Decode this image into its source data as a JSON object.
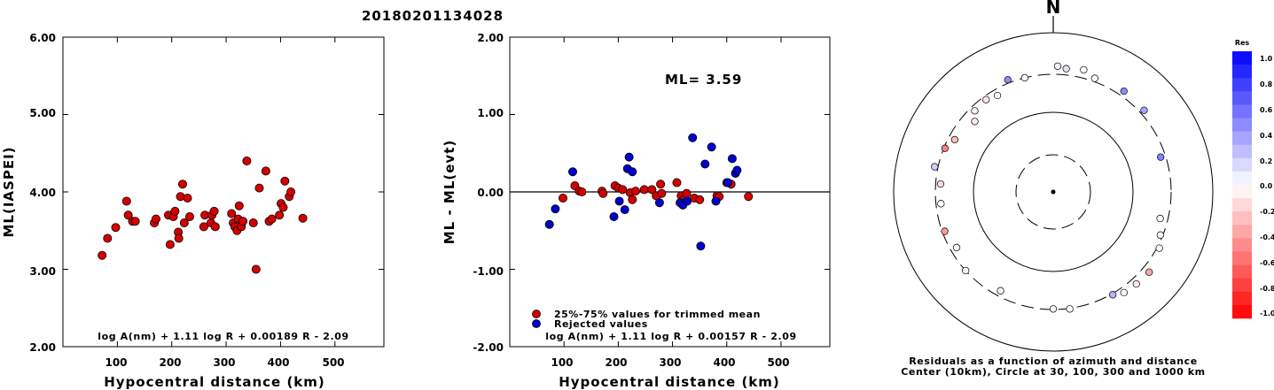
{
  "title": "20180201134028",
  "panel1": {
    "ylabel": "ML(IASPEI)",
    "xlabel": "Hypocentral distance (km)",
    "yticks": [
      "6.00",
      "5.00",
      "4.00",
      "3.00",
      "2.00"
    ],
    "xticks": [
      "100",
      "200",
      "300",
      "400",
      "500"
    ],
    "formula": "log A(nm) + 1.11 log R + 0.00189 R - 2.09"
  },
  "panel2": {
    "ylabel": "ML - ML(evt)",
    "xlabel": "Hypocentral distance (km)",
    "yticks": [
      "2.00",
      "1.00",
      "0.00",
      "-1.00",
      "-2.00"
    ],
    "xticks": [
      "100",
      "200",
      "300",
      "400",
      "500"
    ],
    "ml_text": "ML= 3.59",
    "legend_used": "25%-75% values for trimmed mean",
    "legend_rejected": "Rejected values",
    "formula": "log A(nm) + 1.11 log R + 0.00157 R - 2.09"
  },
  "panel3": {
    "north": "N",
    "caption1": "Residuals as a function of azimuth and distance",
    "caption2": "Center (10km), Circle at 30, 100, 300 and 1000 km",
    "colorbar_title": "Res",
    "colorbar_labels": [
      "1.0",
      "0.8",
      "0.6",
      "0.4",
      "0.2",
      "0.0",
      "-0.2",
      "-0.4",
      "-0.6",
      "-0.8",
      "-1.0"
    ]
  },
  "colors": {
    "used": "#d40000",
    "rejected": "#0000cc",
    "positive_max": "#0000ff",
    "negative_max": "#ff0000"
  },
  "chart_data": [
    {
      "type": "scatter",
      "title": "20180201134028",
      "xlabel": "Hypocentral distance (km)",
      "ylabel": "ML(IASPEI)",
      "xlim": [
        0,
        590
      ],
      "ylim": [
        2.0,
        6.0
      ],
      "grid": false,
      "series": [
        {
          "points": [
            [
              72,
              3.18
            ],
            [
              82,
              3.4
            ],
            [
              97,
              3.54
            ],
            [
              117,
              3.88
            ],
            [
              120,
              3.7
            ],
            [
              128,
              3.62
            ],
            [
              133,
              3.62
            ],
            [
              168,
              3.6
            ],
            [
              171,
              3.65
            ],
            [
              194,
              3.7
            ],
            [
              197,
              3.32
            ],
            [
              203,
              3.68
            ],
            [
              206,
              3.75
            ],
            [
              212,
              3.48
            ],
            [
              213,
              3.4
            ],
            [
              216,
              3.94
            ],
            [
              220,
              4.1
            ],
            [
              223,
              3.6
            ],
            [
              229,
              3.92
            ],
            [
              233,
              3.68
            ],
            [
              259,
              3.55
            ],
            [
              261,
              3.7
            ],
            [
              272,
              3.6
            ],
            [
              274,
              3.7
            ],
            [
              278,
              3.75
            ],
            [
              280,
              3.55
            ],
            [
              310,
              3.72
            ],
            [
              313,
              3.6
            ],
            [
              316,
              3.55
            ],
            [
              320,
              3.5
            ],
            [
              322,
              3.65
            ],
            [
              324,
              3.82
            ],
            [
              328,
              3.55
            ],
            [
              331,
              3.62
            ],
            [
              338,
              4.4
            ],
            [
              350,
              3.6
            ],
            [
              355,
              3.0
            ],
            [
              361,
              4.05
            ],
            [
              373,
              4.27
            ],
            [
              379,
              3.62
            ],
            [
              384,
              3.65
            ],
            [
              398,
              3.7
            ],
            [
              401,
              3.85
            ],
            [
              405,
              3.8
            ],
            [
              408,
              4.14
            ],
            [
              416,
              3.94
            ],
            [
              419,
              4.0
            ],
            [
              441,
              3.66
            ]
          ]
        }
      ]
    },
    {
      "type": "scatter",
      "xlabel": "Hypocentral distance (km)",
      "ylabel": "ML - ML(evt)",
      "xlim": [
        0,
        590
      ],
      "ylim": [
        -2.0,
        2.0
      ],
      "reference_line": 0.0,
      "series": [
        {
          "name": "25%-75% values for trimmed mean",
          "points": [
            [
              98,
              -0.08
            ],
            [
              120,
              0.08
            ],
            [
              128,
              0.01
            ],
            [
              133,
              0.0
            ],
            [
              170,
              0.01
            ],
            [
              172,
              -0.02
            ],
            [
              194,
              0.08
            ],
            [
              200,
              0.05
            ],
            [
              208,
              0.03
            ],
            [
              222,
              -0.01
            ],
            [
              226,
              -0.1
            ],
            [
              232,
              0.01
            ],
            [
              248,
              0.03
            ],
            [
              262,
              0.03
            ],
            [
              270,
              -0.05
            ],
            [
              278,
              0.1
            ],
            [
              280,
              -0.02
            ],
            [
              308,
              0.12
            ],
            [
              316,
              -0.05
            ],
            [
              320,
              -0.1
            ],
            [
              326,
              -0.02
            ],
            [
              340,
              -0.08
            ],
            [
              350,
              -0.1
            ],
            [
              382,
              -0.05
            ],
            [
              386,
              -0.06
            ],
            [
              400,
              0.12
            ],
            [
              408,
              0.1
            ],
            [
              440,
              -0.06
            ]
          ]
        },
        {
          "name": "Rejected values",
          "points": [
            [
              73,
              -0.42
            ],
            [
              84,
              -0.22
            ],
            [
              116,
              0.26
            ],
            [
              192,
              -0.32
            ],
            [
              202,
              -0.12
            ],
            [
              212,
              -0.23
            ],
            [
              217,
              0.3
            ],
            [
              220,
              0.45
            ],
            [
              226,
              0.26
            ],
            [
              276,
              -0.14
            ],
            [
              314,
              -0.14
            ],
            [
              319,
              -0.17
            ],
            [
              327,
              -0.12
            ],
            [
              337,
              0.7
            ],
            [
              352,
              -0.7
            ],
            [
              360,
              0.36
            ],
            [
              372,
              0.58
            ],
            [
              380,
              -0.12
            ],
            [
              402,
              0.12
            ],
            [
              410,
              0.43
            ],
            [
              416,
              0.24
            ],
            [
              419,
              0.28
            ]
          ]
        }
      ]
    },
    {
      "type": "scatter",
      "subtype": "polar-residual-map",
      "title": "Residuals as a function of azimuth and distance",
      "description_text": "Center (10km), Circle at 30, 100, 300 and 1000 km",
      "rings_km": [
        30,
        100,
        300,
        1000
      ],
      "colorbar_range": [
        -1.0,
        1.0
      ],
      "points_azimuth_deg_distance_km_residual": [
        [
          2,
          380,
          0.05
        ],
        [
          6,
          360,
          0.12
        ],
        [
          14,
          380,
          0.0
        ],
        [
          20,
          330,
          0.0
        ],
        [
          35,
          350,
          0.45
        ],
        [
          48,
          340,
          0.35
        ],
        [
          72,
          260,
          0.5
        ],
        [
          104,
          240,
          0.0
        ],
        [
          112,
          280,
          0.0
        ],
        [
          118,
          320,
          0.0
        ],
        [
          130,
          370,
          -0.35
        ],
        [
          138,
          360,
          -0.1
        ],
        [
          145,
          350,
          0.0
        ],
        [
          150,
          310,
          0.3
        ],
        [
          172,
          305,
          0.0
        ],
        [
          180,
          295,
          0.05
        ],
        [
          208,
          255,
          -0.05
        ],
        [
          228,
          300,
          0.0
        ],
        [
          240,
          250,
          0.0
        ],
        [
          250,
          280,
          -0.4
        ],
        [
          264,
          260,
          0.0
        ],
        [
          274,
          260,
          -0.15
        ],
        [
          282,
          330,
          0.2
        ],
        [
          292,
          290,
          -0.5
        ],
        [
          298,
          250,
          -0.25
        ],
        [
          312,
          210,
          -0.1
        ],
        [
          316,
          260,
          -0.05
        ],
        [
          324,
          270,
          -0.1
        ],
        [
          330,
          250,
          0.0
        ],
        [
          338,
          330,
          0.45
        ],
        [
          346,
          300,
          0.0
        ]
      ]
    }
  ]
}
